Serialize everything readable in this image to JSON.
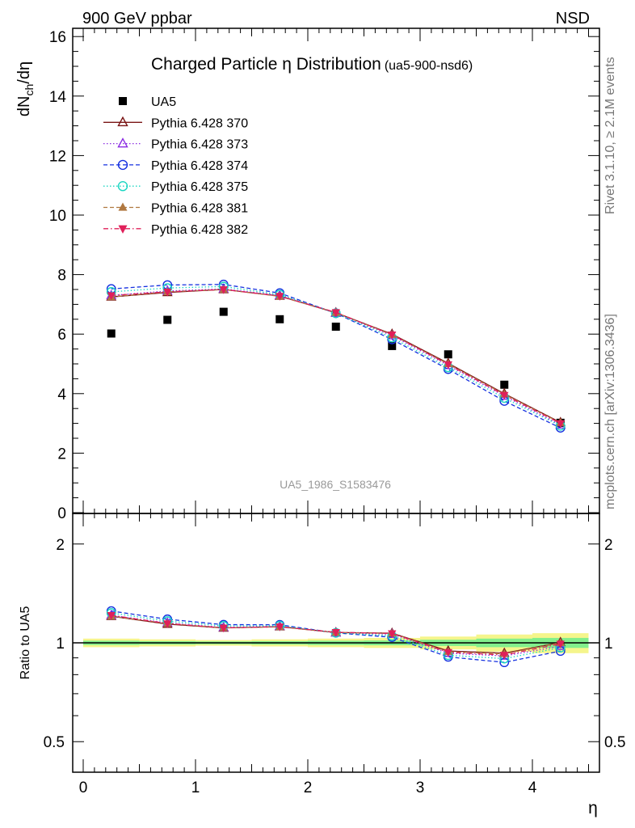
{
  "header": {
    "left_label": "900 GeV ppbar",
    "right_label": "NSD",
    "side_text_top": "Rivet 3.1.10, ≥ 2.1M events",
    "side_text_bottom": "mcplots.cern.ch [arXiv:1306.3436]",
    "analysis_tag": "UA5_1986_S1583476"
  },
  "chart_data": [
    {
      "type": "scatter",
      "panel": "main",
      "title": "Charged Particle η Distribution",
      "subtitle": "(ua5-900-nsd6)",
      "ylabel": "dN_ch/dη",
      "xlabel": "",
      "xlim": [
        -0.1,
        4.6
      ],
      "ylim": [
        0,
        16.4
      ],
      "yticks": [
        0,
        2,
        4,
        6,
        8,
        10,
        12,
        14,
        16
      ],
      "legend_position": "top-left",
      "x": [
        0.25,
        0.75,
        1.25,
        1.75,
        2.25,
        2.75,
        3.25,
        3.75,
        4.25
      ],
      "series": [
        {
          "name": "UA5",
          "color": "#000000",
          "marker": "square",
          "values": [
            6.02,
            6.48,
            6.75,
            6.5,
            6.25,
            5.6,
            5.32,
            4.3,
            3.02
          ]
        },
        {
          "name": "Pythia 6.428 370",
          "color": "#7a1515",
          "marker": "triangle-open",
          "line": "solid",
          "values": [
            7.25,
            7.4,
            7.5,
            7.28,
            6.72,
            6.0,
            5.02,
            4.0,
            3.03
          ]
        },
        {
          "name": "Pythia 6.428 373",
          "color": "#8a2be2",
          "marker": "triangle-open",
          "line": "dotted",
          "values": [
            7.3,
            7.45,
            7.52,
            7.3,
            6.7,
            5.95,
            4.95,
            3.92,
            2.95
          ]
        },
        {
          "name": "Pythia 6.428 374",
          "color": "#1530e0",
          "marker": "circle-open",
          "line": "dashed",
          "values": [
            7.52,
            7.65,
            7.67,
            7.38,
            6.7,
            5.82,
            4.82,
            3.75,
            2.85
          ]
        },
        {
          "name": "Pythia 6.428 375",
          "color": "#1ad6c2",
          "marker": "circle-open",
          "line": "dotted",
          "values": [
            7.42,
            7.55,
            7.6,
            7.33,
            6.7,
            5.88,
            4.88,
            3.85,
            2.92
          ]
        },
        {
          "name": "Pythia 6.428 381",
          "color": "#b07840",
          "marker": "triangle-filled",
          "line": "dashed",
          "values": [
            7.25,
            7.42,
            7.5,
            7.27,
            6.72,
            5.98,
            5.0,
            3.98,
            3.02
          ]
        },
        {
          "name": "Pythia 6.428 382",
          "color": "#e0205a",
          "marker": "triangle-down-filled",
          "line": "dashdot",
          "values": [
            7.3,
            7.42,
            7.5,
            7.28,
            6.73,
            5.98,
            4.98,
            3.95,
            3.0
          ]
        }
      ]
    },
    {
      "type": "line",
      "panel": "ratio",
      "xlabel": "η",
      "ylabel": "Ratio to UA5",
      "xlim": [
        -0.1,
        4.6
      ],
      "ylim": [
        0.5,
        2.0
      ],
      "xticks": [
        0,
        1,
        2,
        3,
        4
      ],
      "yticks": [
        0.5,
        1,
        2
      ],
      "ytick_labels": [
        "0.5",
        "1",
        "2"
      ],
      "x": [
        0.25,
        0.75,
        1.25,
        1.75,
        2.25,
        2.75,
        3.25,
        3.75,
        4.25
      ],
      "bands": {
        "x_edges": [
          0,
          0.5,
          1,
          1.5,
          2,
          2.5,
          3,
          3.5,
          4,
          4.5
        ],
        "yellow_half_width": [
          0.03,
          0.025,
          0.02,
          0.025,
          0.03,
          0.035,
          0.045,
          0.06,
          0.07
        ],
        "green_half_width": [
          0.015,
          0.012,
          0.01,
          0.012,
          0.015,
          0.017,
          0.022,
          0.03,
          0.035
        ],
        "yellow_color": "#f5f58c",
        "green_color": "#82ef8c"
      },
      "series": [
        {
          "name": "Pythia 6.428 370",
          "color": "#7a1515",
          "marker": "triangle-open",
          "line": "solid",
          "values": [
            1.205,
            1.14,
            1.11,
            1.12,
            1.075,
            1.07,
            0.945,
            0.93,
            1.003
          ]
        },
        {
          "name": "Pythia 6.428 373",
          "color": "#8a2be2",
          "marker": "triangle-open",
          "line": "dotted",
          "values": [
            1.213,
            1.15,
            1.114,
            1.123,
            1.072,
            1.063,
            0.93,
            0.912,
            0.977
          ]
        },
        {
          "name": "Pythia 6.428 374",
          "color": "#1530e0",
          "marker": "circle-open",
          "line": "dashed",
          "values": [
            1.25,
            1.18,
            1.136,
            1.135,
            1.072,
            1.04,
            0.906,
            0.872,
            0.944
          ]
        },
        {
          "name": "Pythia 6.428 375",
          "color": "#1ad6c2",
          "marker": "circle-open",
          "line": "dotted",
          "values": [
            1.233,
            1.165,
            1.126,
            1.128,
            1.072,
            1.05,
            0.917,
            0.895,
            0.967
          ]
        },
        {
          "name": "Pythia 6.428 381",
          "color": "#b07840",
          "marker": "triangle-filled",
          "line": "dashed",
          "values": [
            1.205,
            1.145,
            1.111,
            1.118,
            1.075,
            1.068,
            0.94,
            0.926,
            1.0
          ]
        },
        {
          "name": "Pythia 6.428 382",
          "color": "#e0205a",
          "marker": "triangle-down-filled",
          "line": "dashdot",
          "values": [
            1.213,
            1.145,
            1.111,
            1.12,
            1.077,
            1.068,
            0.936,
            0.918,
            0.993
          ]
        }
      ]
    }
  ]
}
